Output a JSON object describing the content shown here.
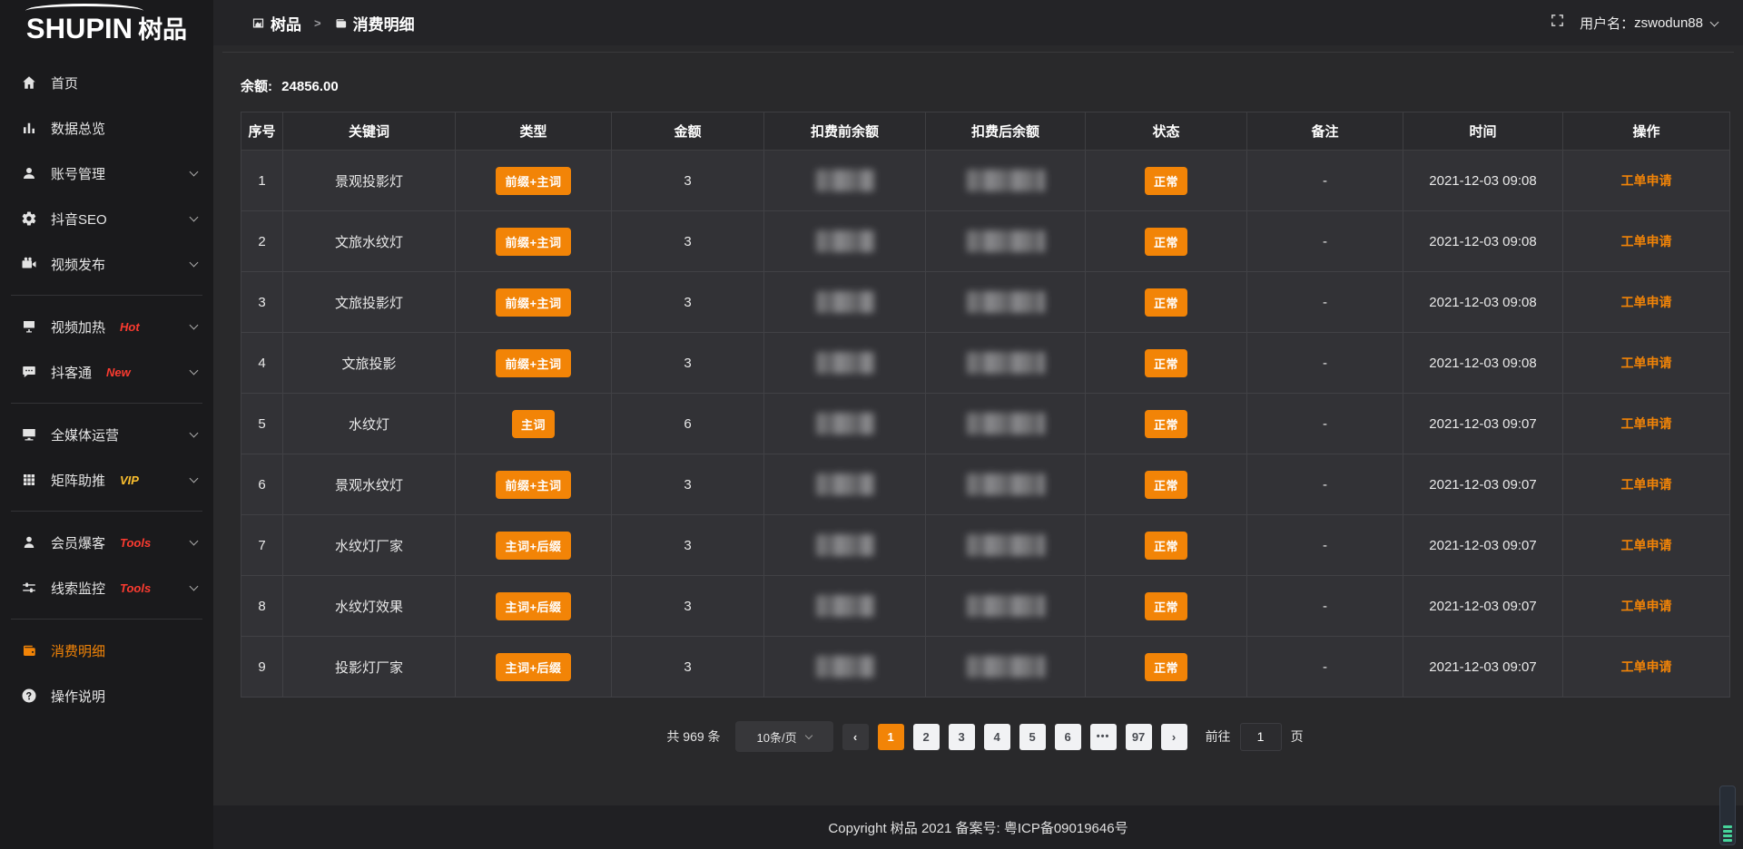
{
  "app": {
    "logo_en": "SHUPIN",
    "logo_cn": "树品"
  },
  "header": {
    "breadcrumb_root": "树品",
    "breadcrumb_separator": ">",
    "breadcrumb_current": "消费明细",
    "username_label": "用户名：",
    "username": "zswodun88"
  },
  "sidebar": {
    "items": [
      {
        "label": "首页"
      },
      {
        "label": "数据总览"
      },
      {
        "label": "账号管理"
      },
      {
        "label": "抖音SEO"
      },
      {
        "label": "视频发布"
      },
      {
        "label": "视频加热",
        "badge": "Hot"
      },
      {
        "label": "抖客通",
        "badge": "New"
      },
      {
        "label": "全媒体运营"
      },
      {
        "label": "矩阵助推",
        "badge": "VIP"
      },
      {
        "label": "会员爆客",
        "badge": "Tools"
      },
      {
        "label": "线索监控",
        "badge": "Tools"
      },
      {
        "label": "消费明细"
      },
      {
        "label": "操作说明"
      }
    ]
  },
  "main": {
    "balance_label": "余额:",
    "balance_value": "24856.00"
  },
  "table": {
    "columns": [
      "序号",
      "关键词",
      "类型",
      "金额",
      "扣费前余额",
      "扣费后余额",
      "状态",
      "备注",
      "时间",
      "操作"
    ],
    "rows": [
      {
        "index": "1",
        "keyword": "景观投影灯",
        "type": "前缀+主词",
        "amount": "3",
        "status": "正常",
        "remark": "-",
        "time": "2021-12-03 09:08",
        "action": "工单申请"
      },
      {
        "index": "2",
        "keyword": "文旅水纹灯",
        "type": "前缀+主词",
        "amount": "3",
        "status": "正常",
        "remark": "-",
        "time": "2021-12-03 09:08",
        "action": "工单申请"
      },
      {
        "index": "3",
        "keyword": "文旅投影灯",
        "type": "前缀+主词",
        "amount": "3",
        "status": "正常",
        "remark": "-",
        "time": "2021-12-03 09:08",
        "action": "工单申请"
      },
      {
        "index": "4",
        "keyword": "文旅投影",
        "type": "前缀+主词",
        "amount": "3",
        "status": "正常",
        "remark": "-",
        "time": "2021-12-03 09:08",
        "action": "工单申请"
      },
      {
        "index": "5",
        "keyword": "水纹灯",
        "type": "主词",
        "amount": "6",
        "status": "正常",
        "remark": "-",
        "time": "2021-12-03 09:07",
        "action": "工单申请"
      },
      {
        "index": "6",
        "keyword": "景观水纹灯",
        "type": "前缀+主词",
        "amount": "3",
        "status": "正常",
        "remark": "-",
        "time": "2021-12-03 09:07",
        "action": "工单申请"
      },
      {
        "index": "7",
        "keyword": "水纹灯厂家",
        "type": "主词+后缀",
        "amount": "3",
        "status": "正常",
        "remark": "-",
        "time": "2021-12-03 09:07",
        "action": "工单申请"
      },
      {
        "index": "8",
        "keyword": "水纹灯效果",
        "type": "主词+后缀",
        "amount": "3",
        "status": "正常",
        "remark": "-",
        "time": "2021-12-03 09:07",
        "action": "工单申请"
      },
      {
        "index": "9",
        "keyword": "投影灯厂家",
        "type": "主词+后缀",
        "amount": "3",
        "status": "正常",
        "remark": "-",
        "time": "2021-12-03 09:07",
        "action": "工单申请"
      }
    ]
  },
  "pagination": {
    "total": "共 969 条",
    "page_size": "10条/页",
    "pages": [
      "1",
      "2",
      "3",
      "4",
      "5",
      "6",
      "•••",
      "97"
    ],
    "active_page": "1",
    "prev_label": "‹",
    "next_label": "›",
    "goto_label": "前往",
    "goto_value": "1",
    "goto_unit": "页"
  },
  "footer": {
    "copyright": "Copyright 树品 2021 备案号: 粤ICP备09019646号"
  },
  "colors": {
    "accent": "#f28407",
    "hot": "#fb3b30",
    "vip": "#fcc02e"
  }
}
